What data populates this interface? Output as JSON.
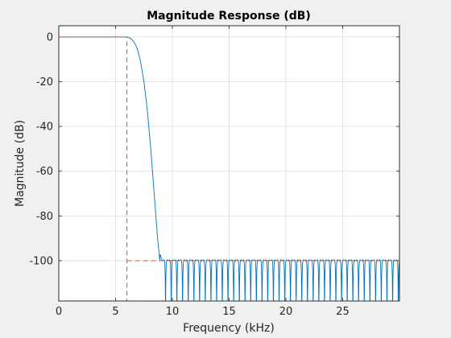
{
  "chart_data": {
    "type": "line",
    "title": "Magnitude Response (dB)",
    "xlabel": "Frequency (kHz)",
    "ylabel": "Magnitude (dB)",
    "xlim": [
      0,
      30
    ],
    "ylim": [
      -118,
      5
    ],
    "x_ticks": [
      0,
      5,
      10,
      15,
      20,
      25
    ],
    "y_ticks": [
      0,
      -20,
      -40,
      -60,
      -80,
      -100
    ],
    "grid": true,
    "series": [
      {
        "style": "solid",
        "color": "#0072bd",
        "passband_end_khz": 6.0,
        "rolloff_x": [
          6.0,
          6.3,
          6.6,
          6.9,
          7.2,
          7.5,
          7.8,
          8.1,
          8.4,
          8.7,
          8.9
        ],
        "rolloff_y": [
          0,
          -0.5,
          -2,
          -5,
          -11,
          -20,
          -33,
          -50,
          -70,
          -90,
          -100
        ],
        "stopband_start_khz": 8.9,
        "stopband_peak_db": -100,
        "stopband_floor_db": -118,
        "stopband_ripple_period_khz": 0.5
      },
      {
        "style": "dashed",
        "color": "#d95319",
        "x": [
          0,
          6,
          6,
          30
        ],
        "y": [
          0,
          0,
          -118,
          -118
        ],
        "x2": [
          6,
          30
        ],
        "y2": [
          -100,
          -100
        ]
      }
    ]
  }
}
